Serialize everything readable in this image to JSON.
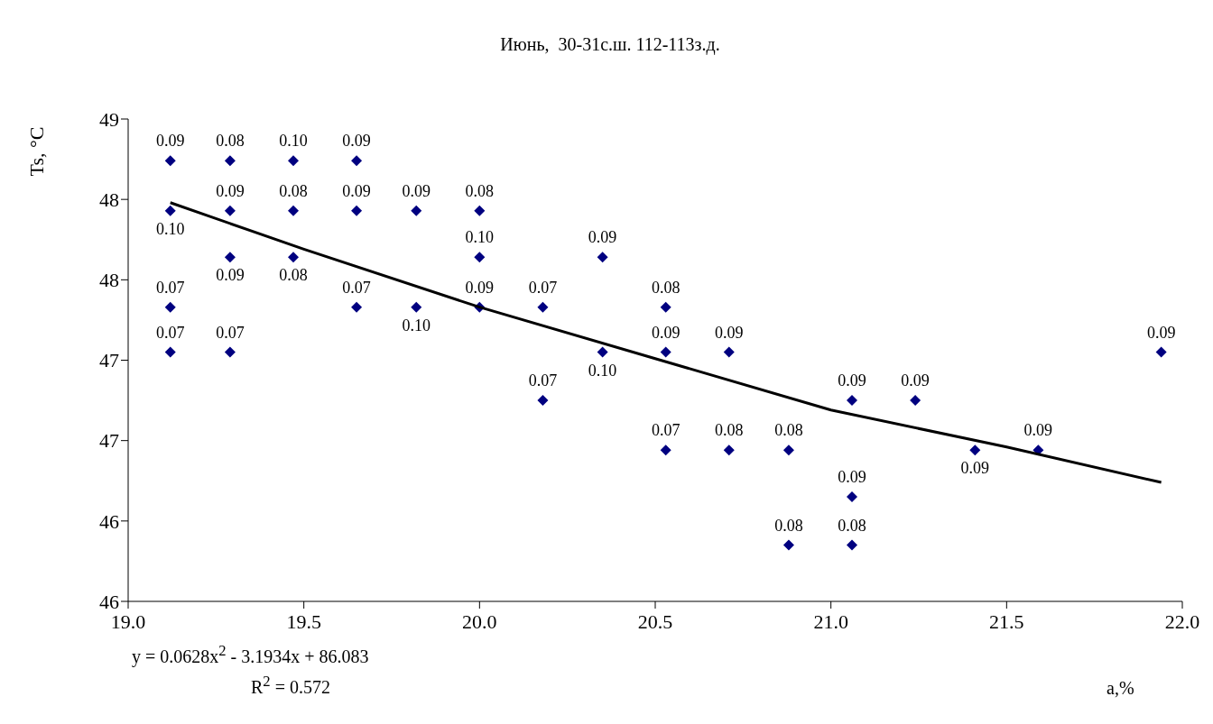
{
  "chart_data": {
    "type": "scatter",
    "title": "Июнь,  30-31с.ш. 112-113з.д.",
    "xlabel": "a,%",
    "ylabel": "Ts, °C",
    "annotations": [
      "y = 0.0628x$^{2}$ - 3.1934x + 86.083",
      "R$^{2}$ = 0.572",
      {
        "text": "0.09",
        "x": 19.12,
        "y": 48.74
      },
      {
        "text": "0.10",
        "x": 19.12,
        "y": 48.43
      },
      {
        "text": "0.07",
        "x": 19.12,
        "y": 47.83
      },
      {
        "text": "0.07",
        "x": 19.12,
        "y": 47.55
      },
      {
        "text": "0.08",
        "x": 19.29,
        "y": 48.74
      },
      {
        "text": "0.09",
        "x": 19.29,
        "y": 48.43
      },
      {
        "text": "0.09",
        "x": 19.29,
        "y": 48.14
      },
      {
        "text": "0.07",
        "x": 19.29,
        "y": 47.55
      },
      {
        "text": "0.10",
        "x": 19.47,
        "y": 48.74
      },
      {
        "text": "0.08",
        "x": 19.47,
        "y": 48.43
      },
      {
        "text": "0.08",
        "x": 19.47,
        "y": 48.14
      },
      {
        "text": "0.09",
        "x": 19.65,
        "y": 48.74
      },
      {
        "text": "0.09",
        "x": 19.65,
        "y": 48.43
      },
      {
        "text": "0.07",
        "x": 19.65,
        "y": 47.83
      },
      {
        "text": "0.09",
        "x": 19.82,
        "y": 48.43
      },
      {
        "text": "0.10",
        "x": 19.82,
        "y": 47.83
      },
      {
        "text": "0.08",
        "x": 20.0,
        "y": 48.43
      },
      {
        "text": "0.10",
        "x": 20.0,
        "y": 48.14
      },
      {
        "text": "0.09",
        "x": 20.0,
        "y": 47.83
      },
      {
        "text": "0.07",
        "x": 20.18,
        "y": 47.83
      },
      {
        "text": "0.07",
        "x": 20.18,
        "y": 47.25
      },
      {
        "text": "0.09",
        "x": 20.35,
        "y": 48.14
      },
      {
        "text": "0.10",
        "x": 20.35,
        "y": 47.55
      },
      {
        "text": "0.08",
        "x": 20.53,
        "y": 47.83
      },
      {
        "text": "0.09",
        "x": 20.53,
        "y": 47.55
      },
      {
        "text": "0.07",
        "x": 20.53,
        "y": 46.94
      },
      {
        "text": "0.09",
        "x": 20.71,
        "y": 47.55
      },
      {
        "text": "0.08",
        "x": 20.71,
        "y": 46.94
      },
      {
        "text": "0.08",
        "x": 20.88,
        "y": 46.94
      },
      {
        "text": "0.08",
        "x": 20.88,
        "y": 46.35
      },
      {
        "text": "0.09",
        "x": 21.06,
        "y": 47.25
      },
      {
        "text": "0.09",
        "x": 21.06,
        "y": 46.65
      },
      {
        "text": "0.08",
        "x": 21.06,
        "y": 46.35
      },
      {
        "text": "0.09",
        "x": 21.24,
        "y": 47.25
      },
      {
        "text": "0.09",
        "x": 21.41,
        "y": 46.94
      },
      {
        "text": "0.09",
        "x": 21.59,
        "y": 46.94
      },
      {
        "text": "0.09",
        "x": 21.94,
        "y": 47.55
      }
    ],
    "xlim": [
      19,
      22
    ],
    "xticks": [
      {
        "value": 19,
        "label": "19.0"
      },
      {
        "value": 19.5,
        "label": "19.5"
      },
      {
        "value": 20,
        "label": "20.0"
      },
      {
        "value": 20.5,
        "label": "20.5"
      },
      {
        "value": 21,
        "label": "21.0"
      },
      {
        "value": 21.5,
        "label": "21.5"
      },
      {
        "value": 22,
        "label": "22.0"
      }
    ],
    "ylim": [
      46,
      49
    ],
    "yticks": [
      {
        "value": 46,
        "label": "46"
      },
      {
        "value": 46.5,
        "label": "46"
      },
      {
        "value": 47,
        "label": "47"
      },
      {
        "value": 47.5,
        "label": "47"
      },
      {
        "value": 48,
        "label": "48"
      },
      {
        "value": 48.5,
        "label": "48"
      },
      {
        "value": 49,
        "label": "49"
      }
    ],
    "grid": false,
    "legend": false,
    "series": [
      {
        "type": "scatter",
        "marker": "diamond",
        "color": "#000080",
        "x": [
          19.12,
          19.12,
          19.12,
          19.12,
          19.29,
          19.29,
          19.29,
          19.29,
          19.47,
          19.47,
          19.47,
          19.65,
          19.65,
          19.65,
          19.82,
          19.82,
          20.0,
          20.0,
          20.0,
          20.18,
          20.18,
          20.35,
          20.35,
          20.53,
          20.53,
          20.53,
          20.71,
          20.71,
          20.88,
          20.88,
          21.06,
          21.06,
          21.06,
          21.24,
          21.41,
          21.59,
          21.94
        ],
        "values": [
          48.74,
          48.43,
          47.83,
          47.55,
          48.74,
          48.43,
          48.14,
          47.55,
          48.74,
          48.43,
          48.14,
          48.74,
          48.43,
          47.83,
          48.43,
          47.83,
          48.43,
          48.14,
          47.83,
          47.83,
          47.25,
          48.14,
          47.55,
          47.83,
          47.55,
          46.94,
          47.55,
          46.94,
          46.94,
          46.35,
          47.25,
          46.65,
          46.35,
          47.25,
          46.94,
          46.94,
          47.55
        ]
      },
      {
        "type": "line",
        "marker": "none",
        "color": "#000000",
        "x": [
          19.12,
          19.5,
          20.0,
          20.5,
          21.0,
          21.5,
          21.94
        ],
        "values": [
          48.48,
          48.19,
          47.83,
          47.51,
          47.19,
          46.96,
          46.74
        ]
      }
    ]
  }
}
